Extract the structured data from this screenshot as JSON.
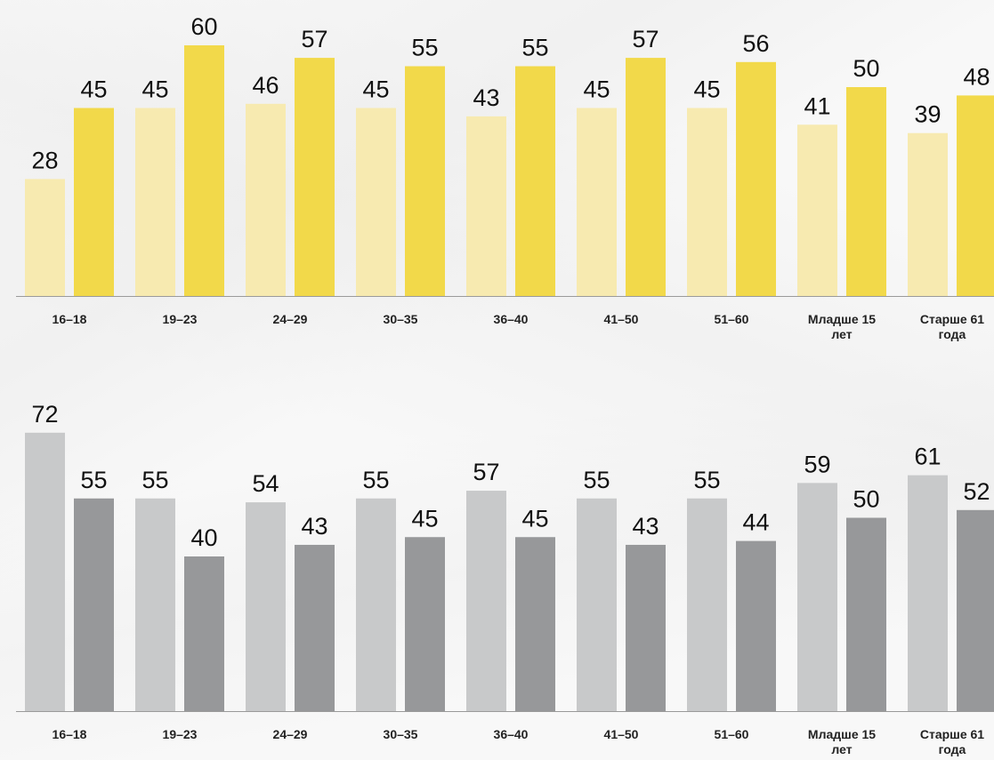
{
  "chart_data": [
    {
      "type": "bar",
      "categories": [
        [
          "16–18"
        ],
        [
          "19–23"
        ],
        [
          "24–29"
        ],
        [
          "30–35"
        ],
        [
          "36–40"
        ],
        [
          "41–50"
        ],
        [
          "51–60"
        ],
        [
          "Младше 15",
          "лет"
        ],
        [
          "Старше 61",
          "года"
        ]
      ],
      "series": [
        {
          "values": [
            28,
            45,
            46,
            45,
            43,
            45,
            45,
            41,
            39
          ],
          "color": "#f7eab0"
        },
        {
          "values": [
            45,
            60,
            57,
            55,
            55,
            57,
            56,
            50,
            48
          ],
          "color": "#f2d94a"
        }
      ],
      "ylim": [
        0,
        60
      ],
      "grid": false,
      "legend": "none"
    },
    {
      "type": "bar",
      "categories": [
        [
          "16–18"
        ],
        [
          "19–23"
        ],
        [
          "24–29"
        ],
        [
          "30–35"
        ],
        [
          "36–40"
        ],
        [
          "41–50"
        ],
        [
          "51–60"
        ],
        [
          "Младше 15",
          "лет"
        ],
        [
          "Старше 61",
          "года"
        ]
      ],
      "series": [
        {
          "values": [
            72,
            55,
            54,
            55,
            57,
            55,
            55,
            59,
            61
          ],
          "color": "#c8c9ca"
        },
        {
          "values": [
            55,
            40,
            43,
            45,
            45,
            43,
            44,
            50,
            52
          ],
          "color": "#97989a"
        }
      ],
      "ylim": [
        0,
        72
      ],
      "grid": false,
      "legend": "none"
    }
  ]
}
